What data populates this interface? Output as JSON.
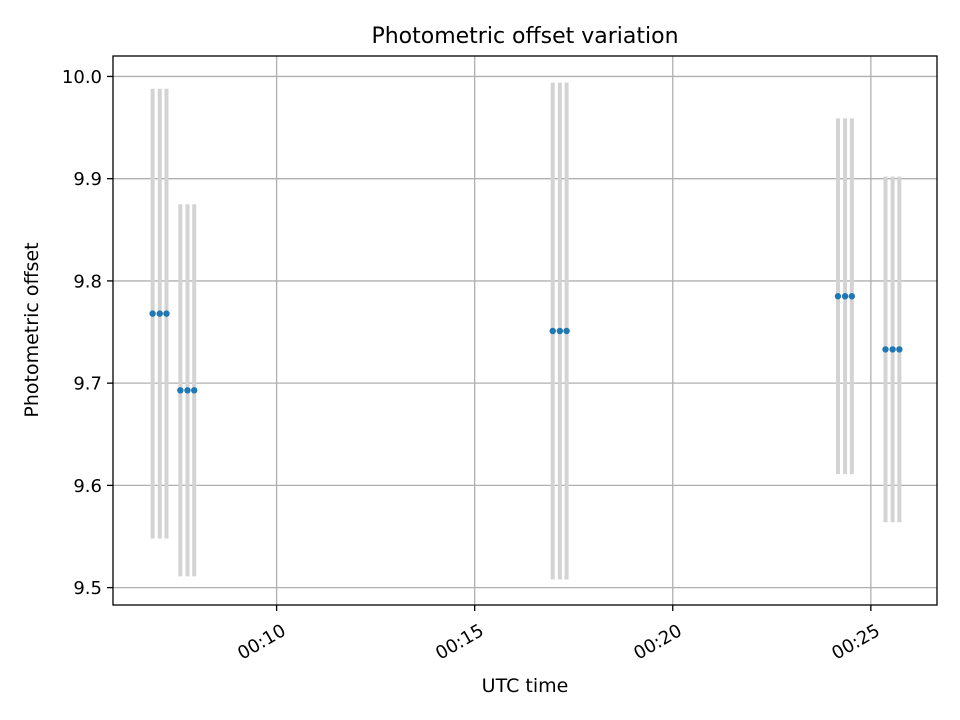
{
  "chart_data": {
    "type": "scatter",
    "title": "Photometric offset variation",
    "xlabel": "UTC time",
    "ylabel": "Photometric offset",
    "x_unit": "minutes",
    "xlim": [
      5.87,
      26.67
    ],
    "ylim": [
      9.483,
      10.02
    ],
    "xticks": [
      {
        "value": 10,
        "label": "00:10"
      },
      {
        "value": 15,
        "label": "00:15"
      },
      {
        "value": 20,
        "label": "00:20"
      },
      {
        "value": 25,
        "label": "00:25"
      }
    ],
    "yticks": [
      {
        "value": 9.5,
        "label": "9.5"
      },
      {
        "value": 9.6,
        "label": "9.6"
      },
      {
        "value": 9.7,
        "label": "9.7"
      },
      {
        "value": 9.8,
        "label": "9.8"
      },
      {
        "value": 9.9,
        "label": "9.9"
      },
      {
        "value": 10.0,
        "label": "10.0"
      }
    ],
    "grid": true,
    "series": [
      {
        "marker_color": "#1f77b4",
        "errorbar_color": "#d3d3d3",
        "points": [
          {
            "x": 6.87,
            "y": 9.768,
            "err": 0.22
          },
          {
            "x": 7.05,
            "y": 9.768,
            "err": 0.22
          },
          {
            "x": 7.22,
            "y": 9.768,
            "err": 0.22
          },
          {
            "x": 7.57,
            "y": 9.693,
            "err": 0.182
          },
          {
            "x": 7.75,
            "y": 9.693,
            "err": 0.182
          },
          {
            "x": 7.92,
            "y": 9.693,
            "err": 0.182
          },
          {
            "x": 16.97,
            "y": 9.751,
            "err": 0.243
          },
          {
            "x": 17.15,
            "y": 9.751,
            "err": 0.243
          },
          {
            "x": 17.32,
            "y": 9.751,
            "err": 0.243
          },
          {
            "x": 24.17,
            "y": 9.785,
            "err": 0.174
          },
          {
            "x": 24.35,
            "y": 9.785,
            "err": 0.174
          },
          {
            "x": 24.52,
            "y": 9.785,
            "err": 0.174
          },
          {
            "x": 25.37,
            "y": 9.733,
            "err": 0.169
          },
          {
            "x": 25.55,
            "y": 9.733,
            "err": 0.169
          },
          {
            "x": 25.72,
            "y": 9.733,
            "err": 0.169
          }
        ]
      }
    ]
  }
}
